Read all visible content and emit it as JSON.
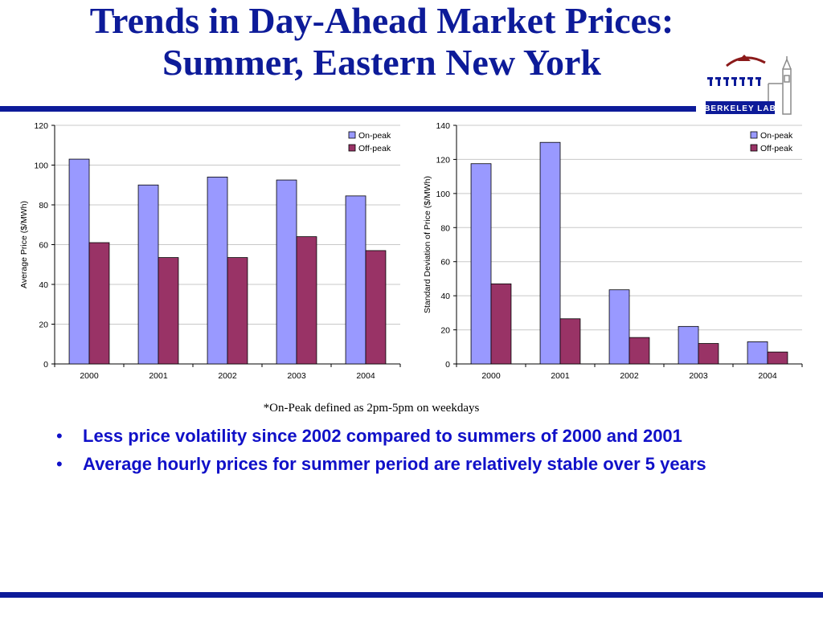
{
  "title": {
    "line1": "Trends in Day-Ahead Market Prices:",
    "line2": "Summer, Eastern New York"
  },
  "logo": {
    "text": "BERKELEY LAB",
    "icon": "berkeley-lab-logo"
  },
  "colors": {
    "brand": "#0d1b99",
    "bullet_text": "#1010c8",
    "on_peak": "#9999ff",
    "off_peak": "#993366"
  },
  "footnote": "*On-Peak defined as 2pm-5pm on weekdays",
  "bullets": [
    "Less price volatility since 2002 compared to summers of 2000 and 2001",
    "Average hourly prices for summer period are relatively stable over 5 years"
  ],
  "chart_data": [
    {
      "type": "bar",
      "title": "",
      "xlabel": "",
      "ylabel": "Average Price ($/MWh)",
      "categories": [
        "2000",
        "2001",
        "2002",
        "2003",
        "2004"
      ],
      "ylim": [
        0,
        120
      ],
      "yticks": [
        0,
        20,
        40,
        60,
        80,
        100,
        120
      ],
      "grid": true,
      "legend_position": "top-right",
      "series": [
        {
          "name": "On-peak",
          "color": "#9999ff",
          "values": [
            103,
            90,
            94,
            92.5,
            84.5
          ]
        },
        {
          "name": "Off-peak",
          "color": "#993366",
          "values": [
            61,
            53.5,
            53.5,
            64,
            57
          ]
        }
      ]
    },
    {
      "type": "bar",
      "title": "",
      "xlabel": "",
      "ylabel": "Standard Deviation of Price ($/MWh)",
      "categories": [
        "2000",
        "2001",
        "2002",
        "2003",
        "2004"
      ],
      "ylim": [
        0,
        140
      ],
      "yticks": [
        0,
        20,
        40,
        60,
        80,
        100,
        120,
        140
      ],
      "grid": true,
      "legend_position": "top-right",
      "series": [
        {
          "name": "On-peak",
          "color": "#9999ff",
          "values": [
            117.5,
            130,
            43.5,
            22,
            13
          ]
        },
        {
          "name": "Off-peak",
          "color": "#993366",
          "values": [
            47,
            26.5,
            15.5,
            12,
            7
          ]
        }
      ]
    }
  ]
}
